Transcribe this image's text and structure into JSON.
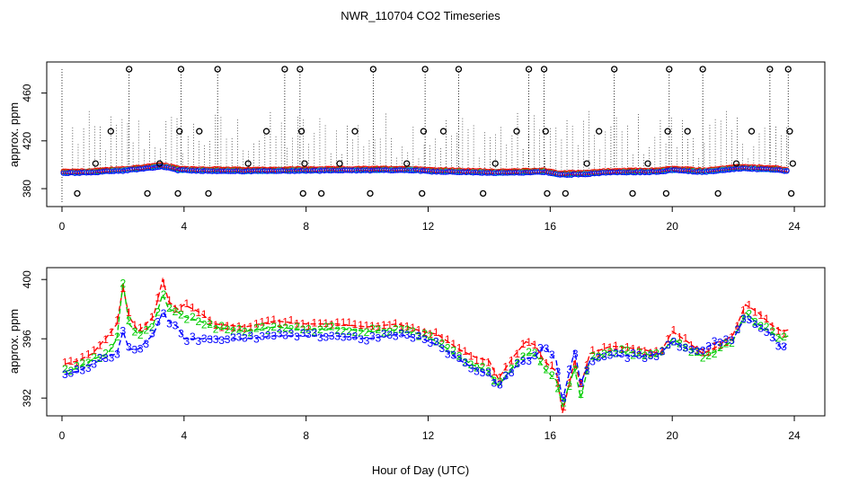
{
  "title": "NWR_110704  CO2 Timeseries",
  "xlabel": "Hour of Day (UTC)",
  "colors": {
    "axis": "#000000",
    "series1": "#ff0000",
    "series2": "#00cc00",
    "series3": "#0000ff",
    "cyan": "#00cccc",
    "flag": "#000000"
  },
  "chart_data": [
    {
      "type": "scatter",
      "panel": "top",
      "title": "NWR_110704  CO2 Timeseries",
      "xlabel": "",
      "ylabel": "approx. ppm",
      "xlim": [
        -0.5,
        25
      ],
      "ylim": [
        365,
        486
      ],
      "xticks": [
        0,
        4,
        8,
        12,
        16,
        20,
        24
      ],
      "yticks": [
        380,
        420,
        460
      ],
      "baseline_anchors": [
        [
          0.0,
          393.5
        ],
        [
          1.0,
          394.0
        ],
        [
          1.5,
          395.0
        ],
        [
          2.0,
          395.5
        ],
        [
          3.3,
          399.0
        ],
        [
          3.8,
          396.0
        ],
        [
          4.5,
          395.5
        ],
        [
          6.0,
          395.0
        ],
        [
          8.0,
          395.5
        ],
        [
          11.5,
          396.0
        ],
        [
          12.0,
          395.0
        ],
        [
          13.5,
          394.0
        ],
        [
          14.5,
          393.5
        ],
        [
          15.8,
          394.5
        ],
        [
          16.3,
          392.0
        ],
        [
          17.0,
          392.5
        ],
        [
          18.0,
          394.0
        ],
        [
          19.5,
          394.5
        ],
        [
          20.0,
          396.0
        ],
        [
          21.0,
          394.5
        ],
        [
          22.3,
          397.5
        ],
        [
          23.5,
          396.0
        ],
        [
          23.7,
          395.0
        ]
      ],
      "flag_high": [
        2.2,
        3.9,
        5.1,
        7.3,
        7.8,
        10.2,
        11.9,
        13.0,
        15.3,
        15.8,
        18.1,
        19.9,
        21.0,
        23.2,
        23.8
      ],
      "flag_mid": [
        1.6,
        3.85,
        4.5,
        6.7,
        7.85,
        9.6,
        11.85,
        12.5,
        14.9,
        15.85,
        17.6,
        19.85,
        20.5,
        22.6,
        23.85
      ],
      "flag_low": [
        0.5,
        2.8,
        3.8,
        4.8,
        7.9,
        8.5,
        10.1,
        11.8,
        13.8,
        15.9,
        16.5,
        18.7,
        19.8,
        21.5,
        23.9
      ],
      "flag_mid2": [
        1.1,
        3.2,
        6.1,
        7.95,
        9.1,
        11.3,
        14.2,
        17.2,
        19.2,
        22.1,
        23.95
      ],
      "flag_values": {
        "high": 480,
        "mid": 428,
        "low": 376,
        "mid2": 401
      }
    },
    {
      "type": "line",
      "panel": "bottom",
      "xlabel": "Hour of Day (UTC)",
      "ylabel": "approx. ppm",
      "xlim": [
        -0.5,
        25
      ],
      "ylim": [
        390.8,
        400.8
      ],
      "xticks": [
        0,
        4,
        8,
        12,
        16,
        20,
        24
      ],
      "yticks": [
        392,
        396,
        400
      ],
      "series": [
        {
          "name": "1",
          "x": [
            0.1,
            0.5,
            1.0,
            1.5,
            1.8,
            2.0,
            2.2,
            2.5,
            3.0,
            3.3,
            3.5,
            3.8,
            4.0,
            4.5,
            5.0,
            6.0,
            7.0,
            8.0,
            9.0,
            10.0,
            11.0,
            11.8,
            12.3,
            13.0,
            13.5,
            14.0,
            14.3,
            14.8,
            15.2,
            15.5,
            15.8,
            16.2,
            16.4,
            16.8,
            17.0,
            17.3,
            18.0,
            19.0,
            19.6,
            20.0,
            20.5,
            21.0,
            21.5,
            22.0,
            22.4,
            22.8,
            23.2,
            23.6,
            23.8
          ],
          "y": [
            394.3,
            394.5,
            395.0,
            396.2,
            397.0,
            399.5,
            397.5,
            396.5,
            397.5,
            400.0,
            398.5,
            398.0,
            398.3,
            397.8,
            397.0,
            396.8,
            397.2,
            397.0,
            397.0,
            396.8,
            397.0,
            396.5,
            396.3,
            395.3,
            394.8,
            394.5,
            393.3,
            394.8,
            395.8,
            395.6,
            394.5,
            393.8,
            391.0,
            394.5,
            392.8,
            395.0,
            395.5,
            395.3,
            395.0,
            396.5,
            395.8,
            395.0,
            395.5,
            396.3,
            398.3,
            397.8,
            397.0,
            396.5,
            396.6
          ]
        },
        {
          "name": "2",
          "x": [
            0.1,
            0.5,
            1.0,
            1.5,
            1.8,
            2.0,
            2.2,
            2.5,
            3.0,
            3.3,
            3.5,
            3.8,
            4.0,
            4.5,
            5.0,
            6.0,
            7.0,
            8.0,
            9.0,
            10.0,
            11.0,
            11.8,
            12.3,
            13.0,
            13.5,
            14.0,
            14.3,
            14.8,
            15.2,
            15.5,
            15.8,
            16.2,
            16.4,
            16.8,
            17.0,
            17.3,
            18.0,
            19.0,
            19.6,
            20.0,
            20.5,
            21.0,
            21.5,
            22.0,
            22.4,
            22.8,
            23.2,
            23.6,
            23.8
          ],
          "y": [
            393.8,
            394.0,
            394.6,
            395.0,
            396.0,
            399.8,
            397.0,
            396.3,
            397.0,
            399.0,
            398.0,
            397.8,
            397.5,
            397.2,
            396.8,
            396.5,
            396.8,
            396.6,
            396.7,
            396.5,
            396.6,
            396.3,
            395.8,
            394.8,
            394.2,
            393.8,
            392.8,
            394.2,
            395.0,
            395.0,
            394.0,
            393.2,
            391.5,
            394.0,
            392.0,
            394.6,
            395.2,
            395.0,
            394.8,
            396.0,
            395.4,
            394.8,
            395.2,
            395.9,
            397.8,
            397.0,
            396.5,
            396.0,
            396.2
          ]
        },
        {
          "name": "3",
          "x": [
            0.1,
            0.5,
            1.0,
            1.5,
            1.8,
            2.0,
            2.2,
            2.5,
            3.0,
            3.3,
            3.5,
            3.8,
            4.0,
            4.5,
            5.0,
            6.0,
            7.0,
            8.0,
            9.0,
            10.0,
            11.0,
            11.8,
            12.3,
            13.0,
            13.5,
            14.0,
            14.3,
            14.8,
            15.2,
            15.5,
            15.8,
            16.2,
            16.4,
            16.8,
            17.0,
            17.3,
            18.0,
            19.0,
            19.6,
            20.0,
            20.5,
            21.0,
            21.5,
            22.0,
            22.4,
            22.8,
            23.2,
            23.6,
            23.8
          ],
          "y": [
            393.6,
            393.8,
            394.3,
            394.8,
            395.0,
            396.5,
            395.3,
            395.3,
            396.3,
            397.8,
            397.2,
            396.8,
            396.0,
            396.0,
            396.0,
            396.0,
            396.2,
            396.2,
            396.2,
            396.0,
            396.3,
            396.0,
            395.6,
            394.6,
            394.0,
            393.6,
            392.8,
            394.0,
            394.6,
            394.8,
            395.5,
            394.5,
            391.8,
            395.2,
            393.0,
            394.5,
            394.9,
            394.8,
            395.0,
            395.8,
            395.3,
            395.3,
            395.8,
            396.0,
            397.5,
            396.8,
            396.4,
            395.3,
            395.8
          ]
        }
      ]
    }
  ]
}
